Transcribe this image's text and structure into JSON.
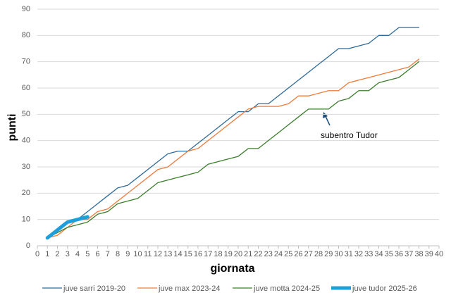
{
  "chart_data": {
    "type": "line",
    "x": [
      1,
      2,
      3,
      4,
      5,
      6,
      7,
      8,
      9,
      10,
      11,
      12,
      13,
      14,
      15,
      16,
      17,
      18,
      19,
      20,
      21,
      22,
      23,
      24,
      25,
      26,
      27,
      28,
      29,
      30,
      31,
      32,
      33,
      34,
      35,
      36,
      37,
      38
    ],
    "xlabel": "giornata",
    "ylabel": "punti",
    "xlim": [
      0,
      40
    ],
    "xticks": [
      0,
      1,
      2,
      3,
      4,
      5,
      6,
      7,
      8,
      9,
      10,
      11,
      12,
      13,
      14,
      15,
      16,
      17,
      18,
      19,
      20,
      21,
      22,
      23,
      24,
      25,
      26,
      27,
      28,
      29,
      30,
      31,
      32,
      33,
      34,
      35,
      36,
      37,
      38,
      39,
      40
    ],
    "ylim": [
      0,
      90
    ],
    "yticks": [
      0,
      10,
      20,
      30,
      40,
      50,
      60,
      70,
      80,
      90
    ],
    "grid": true,
    "legend": "bottom",
    "series": [
      {
        "name": "juve sarri 2019-20",
        "color": "#2e6a99",
        "width": 1.3,
        "values": [
          3,
          6,
          9,
          10,
          13,
          16,
          19,
          22,
          23,
          26,
          29,
          32,
          35,
          36,
          36,
          39,
          42,
          45,
          48,
          51,
          51,
          54,
          54,
          57,
          60,
          63,
          66,
          69,
          72,
          75,
          75,
          76,
          77,
          80,
          80,
          83,
          83,
          83
        ]
      },
      {
        "name": "juve max 2023-24",
        "color": "#f07a3a",
        "width": 1.3,
        "values": [
          3,
          4,
          7,
          10,
          10,
          13,
          14,
          17,
          20,
          23,
          26,
          29,
          30,
          33,
          36,
          37,
          40,
          43,
          46,
          49,
          52,
          53,
          53,
          53,
          54,
          57,
          57,
          58,
          59,
          59,
          62,
          63,
          64,
          65,
          66,
          67,
          68,
          71
        ]
      },
      {
        "name": "juve motta 2024-25",
        "color": "#3b7d2c",
        "width": 1.3,
        "values": [
          3,
          5,
          7,
          8,
          9,
          12,
          13,
          16,
          17,
          18,
          21,
          24,
          25,
          26,
          27,
          28,
          31,
          32,
          33,
          34,
          37,
          37,
          40,
          43,
          46,
          49,
          52,
          52,
          52,
          55,
          56,
          59,
          59,
          62,
          63,
          64,
          67,
          70
        ]
      },
      {
        "name": "juve tudor 2025-26",
        "color": "#1e9fdc",
        "width": 5,
        "values": [
          3,
          6,
          9,
          10,
          11,
          null,
          null,
          null,
          null,
          null,
          null,
          null,
          null,
          null,
          null,
          null,
          null,
          null,
          null,
          null,
          null,
          null,
          null,
          null,
          null,
          null,
          null,
          null,
          null,
          null,
          null,
          null,
          null,
          null,
          null,
          null,
          null,
          null
        ]
      }
    ],
    "annotation": "subentro Tudor"
  }
}
